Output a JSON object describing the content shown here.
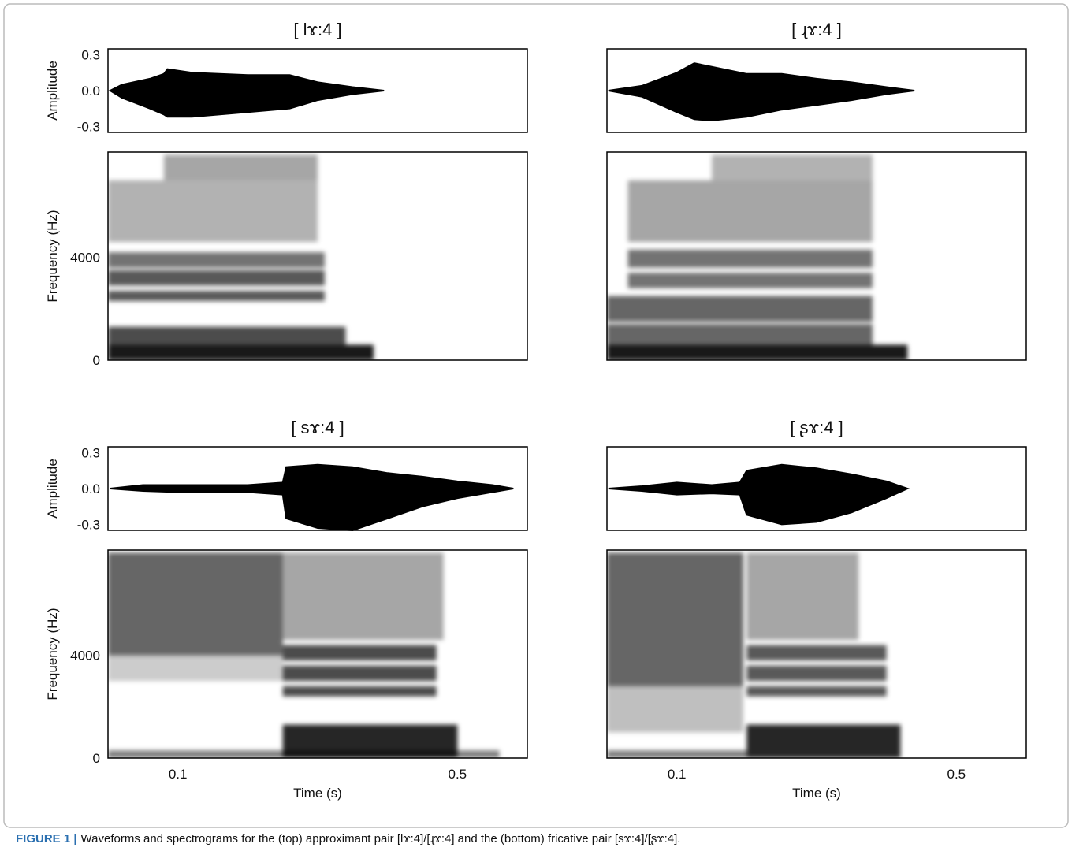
{
  "chart_data": [
    {
      "type": "waveform-spectrogram",
      "title": "[ lɤ:4 ]",
      "color": "#000000",
      "xlim": [
        0,
        0.6
      ],
      "waveform": {
        "y_label": "Amplitude",
        "ylim": [
          -0.35,
          0.35
        ],
        "yticks": [
          -0.3,
          {
            "value": 0,
            "label": "0.0"
          },
          0.3
        ],
        "x": [
          0.003,
          0.02,
          0.06,
          0.08,
          0.085,
          0.12,
          0.2,
          0.26,
          0.3,
          0.35,
          0.395
        ],
        "upper": [
          0,
          0.05,
          0.1,
          0.14,
          0.18,
          0.15,
          0.13,
          0.13,
          0.07,
          0.03,
          0
        ],
        "lower": [
          0,
          -0.06,
          -0.15,
          -0.2,
          -0.22,
          -0.22,
          -0.18,
          -0.15,
          -0.08,
          -0.03,
          0
        ]
      },
      "spectrogram": {
        "y_label": "Frequency (Hz)",
        "ylim": [
          0,
          8100
        ],
        "yticks": [
          0,
          4000
        ],
        "bands": [
          {
            "t": [
              0,
              0.38
            ],
            "f": [
              0,
              600
            ],
            "level": 0.9
          },
          {
            "t": [
              0,
              0.34
            ],
            "f": [
              600,
              1300
            ],
            "level": 0.7
          },
          {
            "t": [
              0,
              0.31
            ],
            "f": [
              2300,
              2700
            ],
            "level": 0.65
          },
          {
            "t": [
              0,
              0.31
            ],
            "f": [
              2900,
              3500
            ],
            "level": 0.65
          },
          {
            "t": [
              0,
              0.31
            ],
            "f": [
              3600,
              4200
            ],
            "level": 0.55
          },
          {
            "t": [
              0,
              0.3
            ],
            "f": [
              4600,
              7000
            ],
            "level": 0.3
          },
          {
            "t": [
              0.08,
              0.3
            ],
            "f": [
              7000,
              8000
            ],
            "level": 0.35
          }
        ]
      }
    },
    {
      "type": "waveform-spectrogram",
      "title": "[ ɻɤ:4 ]",
      "color": "#000000",
      "xlim": [
        0,
        0.6
      ],
      "waveform": {
        "ylim": [
          -0.35,
          0.35
        ],
        "x": [
          0.002,
          0.05,
          0.1,
          0.125,
          0.15,
          0.2,
          0.25,
          0.3,
          0.35,
          0.4,
          0.44
        ],
        "upper": [
          0,
          0.04,
          0.15,
          0.23,
          0.2,
          0.14,
          0.14,
          0.1,
          0.07,
          0.03,
          0
        ],
        "lower": [
          0,
          -0.05,
          -0.18,
          -0.24,
          -0.25,
          -0.22,
          -0.16,
          -0.12,
          -0.08,
          -0.03,
          0
        ]
      },
      "spectrogram": {
        "ylim": [
          0,
          8100
        ],
        "bands": [
          {
            "t": [
              0,
              0.43
            ],
            "f": [
              0,
              600
            ],
            "level": 0.9
          },
          {
            "t": [
              0,
              0.38
            ],
            "f": [
              600,
              1400
            ],
            "level": 0.6
          },
          {
            "t": [
              0,
              0.38
            ],
            "f": [
              1500,
              2500
            ],
            "level": 0.6
          },
          {
            "t": [
              0.03,
              0.38
            ],
            "f": [
              2800,
              3400
            ],
            "level": 0.55
          },
          {
            "t": [
              0.03,
              0.38
            ],
            "f": [
              3600,
              4300
            ],
            "level": 0.55
          },
          {
            "t": [
              0.03,
              0.38
            ],
            "f": [
              4600,
              7000
            ],
            "level": 0.35
          },
          {
            "t": [
              0.15,
              0.38
            ],
            "f": [
              7000,
              8000
            ],
            "level": 0.3
          }
        ]
      }
    },
    {
      "type": "waveform-spectrogram",
      "title": "[ sɤ:4 ]",
      "color": "#000000",
      "xlim": [
        0,
        0.6
      ],
      "x_label": "Time (s)",
      "xticks": [
        0.1,
        0.5
      ],
      "waveform": {
        "y_label": "Amplitude",
        "ylim": [
          -0.35,
          0.35
        ],
        "yticks": [
          -0.3,
          {
            "value": 0,
            "label": "0.0"
          },
          0.3
        ],
        "x": [
          0.003,
          0.05,
          0.1,
          0.2,
          0.25,
          0.255,
          0.3,
          0.35,
          0.4,
          0.45,
          0.5,
          0.55,
          0.58
        ],
        "upper": [
          0,
          0.03,
          0.03,
          0.03,
          0.05,
          0.18,
          0.2,
          0.18,
          0.13,
          0.1,
          0.06,
          0.03,
          0
        ],
        "lower": [
          0,
          -0.02,
          -0.03,
          -0.03,
          -0.05,
          -0.25,
          -0.33,
          -0.35,
          -0.25,
          -0.15,
          -0.08,
          -0.03,
          0
        ]
      },
      "spectrogram": {
        "y_label": "Frequency (Hz)",
        "ylim": [
          0,
          8100
        ],
        "yticks": [
          0,
          4000
        ],
        "bands": [
          {
            "t": [
              0,
              0.25
            ],
            "f": [
              4000,
              8000
            ],
            "level": 0.6
          },
          {
            "t": [
              0,
              0.25
            ],
            "f": [
              3000,
              4000
            ],
            "level": 0.2
          },
          {
            "t": [
              0,
              0.56
            ],
            "f": [
              0,
              300
            ],
            "level": 0.5
          },
          {
            "t": [
              0.25,
              0.5
            ],
            "f": [
              0,
              1300
            ],
            "level": 0.85
          },
          {
            "t": [
              0.25,
              0.47
            ],
            "f": [
              2400,
              2800
            ],
            "level": 0.7
          },
          {
            "t": [
              0.25,
              0.47
            ],
            "f": [
              3000,
              3600
            ],
            "level": 0.7
          },
          {
            "t": [
              0.25,
              0.47
            ],
            "f": [
              3800,
              4400
            ],
            "level": 0.7
          },
          {
            "t": [
              0.25,
              0.48
            ],
            "f": [
              4600,
              8000
            ],
            "level": 0.35
          }
        ]
      }
    },
    {
      "type": "waveform-spectrogram",
      "title": "[ ʂɤ:4 ]",
      "color": "#000000",
      "xlim": [
        0,
        0.6
      ],
      "x_label": "Time (s)",
      "xticks": [
        0.1,
        0.5
      ],
      "waveform": {
        "ylim": [
          -0.35,
          0.35
        ],
        "x": [
          0.002,
          0.05,
          0.1,
          0.15,
          0.19,
          0.2,
          0.25,
          0.3,
          0.35,
          0.4,
          0.43
        ],
        "upper": [
          0,
          0.02,
          0.05,
          0.03,
          0.05,
          0.15,
          0.2,
          0.17,
          0.12,
          0.06,
          0
        ],
        "lower": [
          0,
          -0.02,
          -0.05,
          -0.04,
          -0.05,
          -0.22,
          -0.3,
          -0.28,
          -0.2,
          -0.08,
          0
        ]
      },
      "spectrogram": {
        "ylim": [
          0,
          8100
        ],
        "bands": [
          {
            "t": [
              0,
              0.195
            ],
            "f": [
              2800,
              8000
            ],
            "level": 0.6
          },
          {
            "t": [
              0,
              0.195
            ],
            "f": [
              1000,
              2800
            ],
            "level": 0.25
          },
          {
            "t": [
              0,
              0.2
            ],
            "f": [
              0,
              300
            ],
            "level": 0.5
          },
          {
            "t": [
              0.2,
              0.42
            ],
            "f": [
              0,
              1300
            ],
            "level": 0.85
          },
          {
            "t": [
              0.2,
              0.4
            ],
            "f": [
              2400,
              2800
            ],
            "level": 0.65
          },
          {
            "t": [
              0.2,
              0.4
            ],
            "f": [
              3000,
              3600
            ],
            "level": 0.65
          },
          {
            "t": [
              0.2,
              0.4
            ],
            "f": [
              3800,
              4400
            ],
            "level": 0.65
          },
          {
            "t": [
              0.2,
              0.36
            ],
            "f": [
              4600,
              8000
            ],
            "level": 0.35
          }
        ]
      }
    }
  ],
  "caption": {
    "label": "FIGURE 1 |",
    "text": "Waveforms and spectrograms for the (top) approximant pair [lɤ:4]/[ɻɤ:4] and the (bottom) fricative pair [sɤ:4]/[ʂɤ:4]."
  }
}
